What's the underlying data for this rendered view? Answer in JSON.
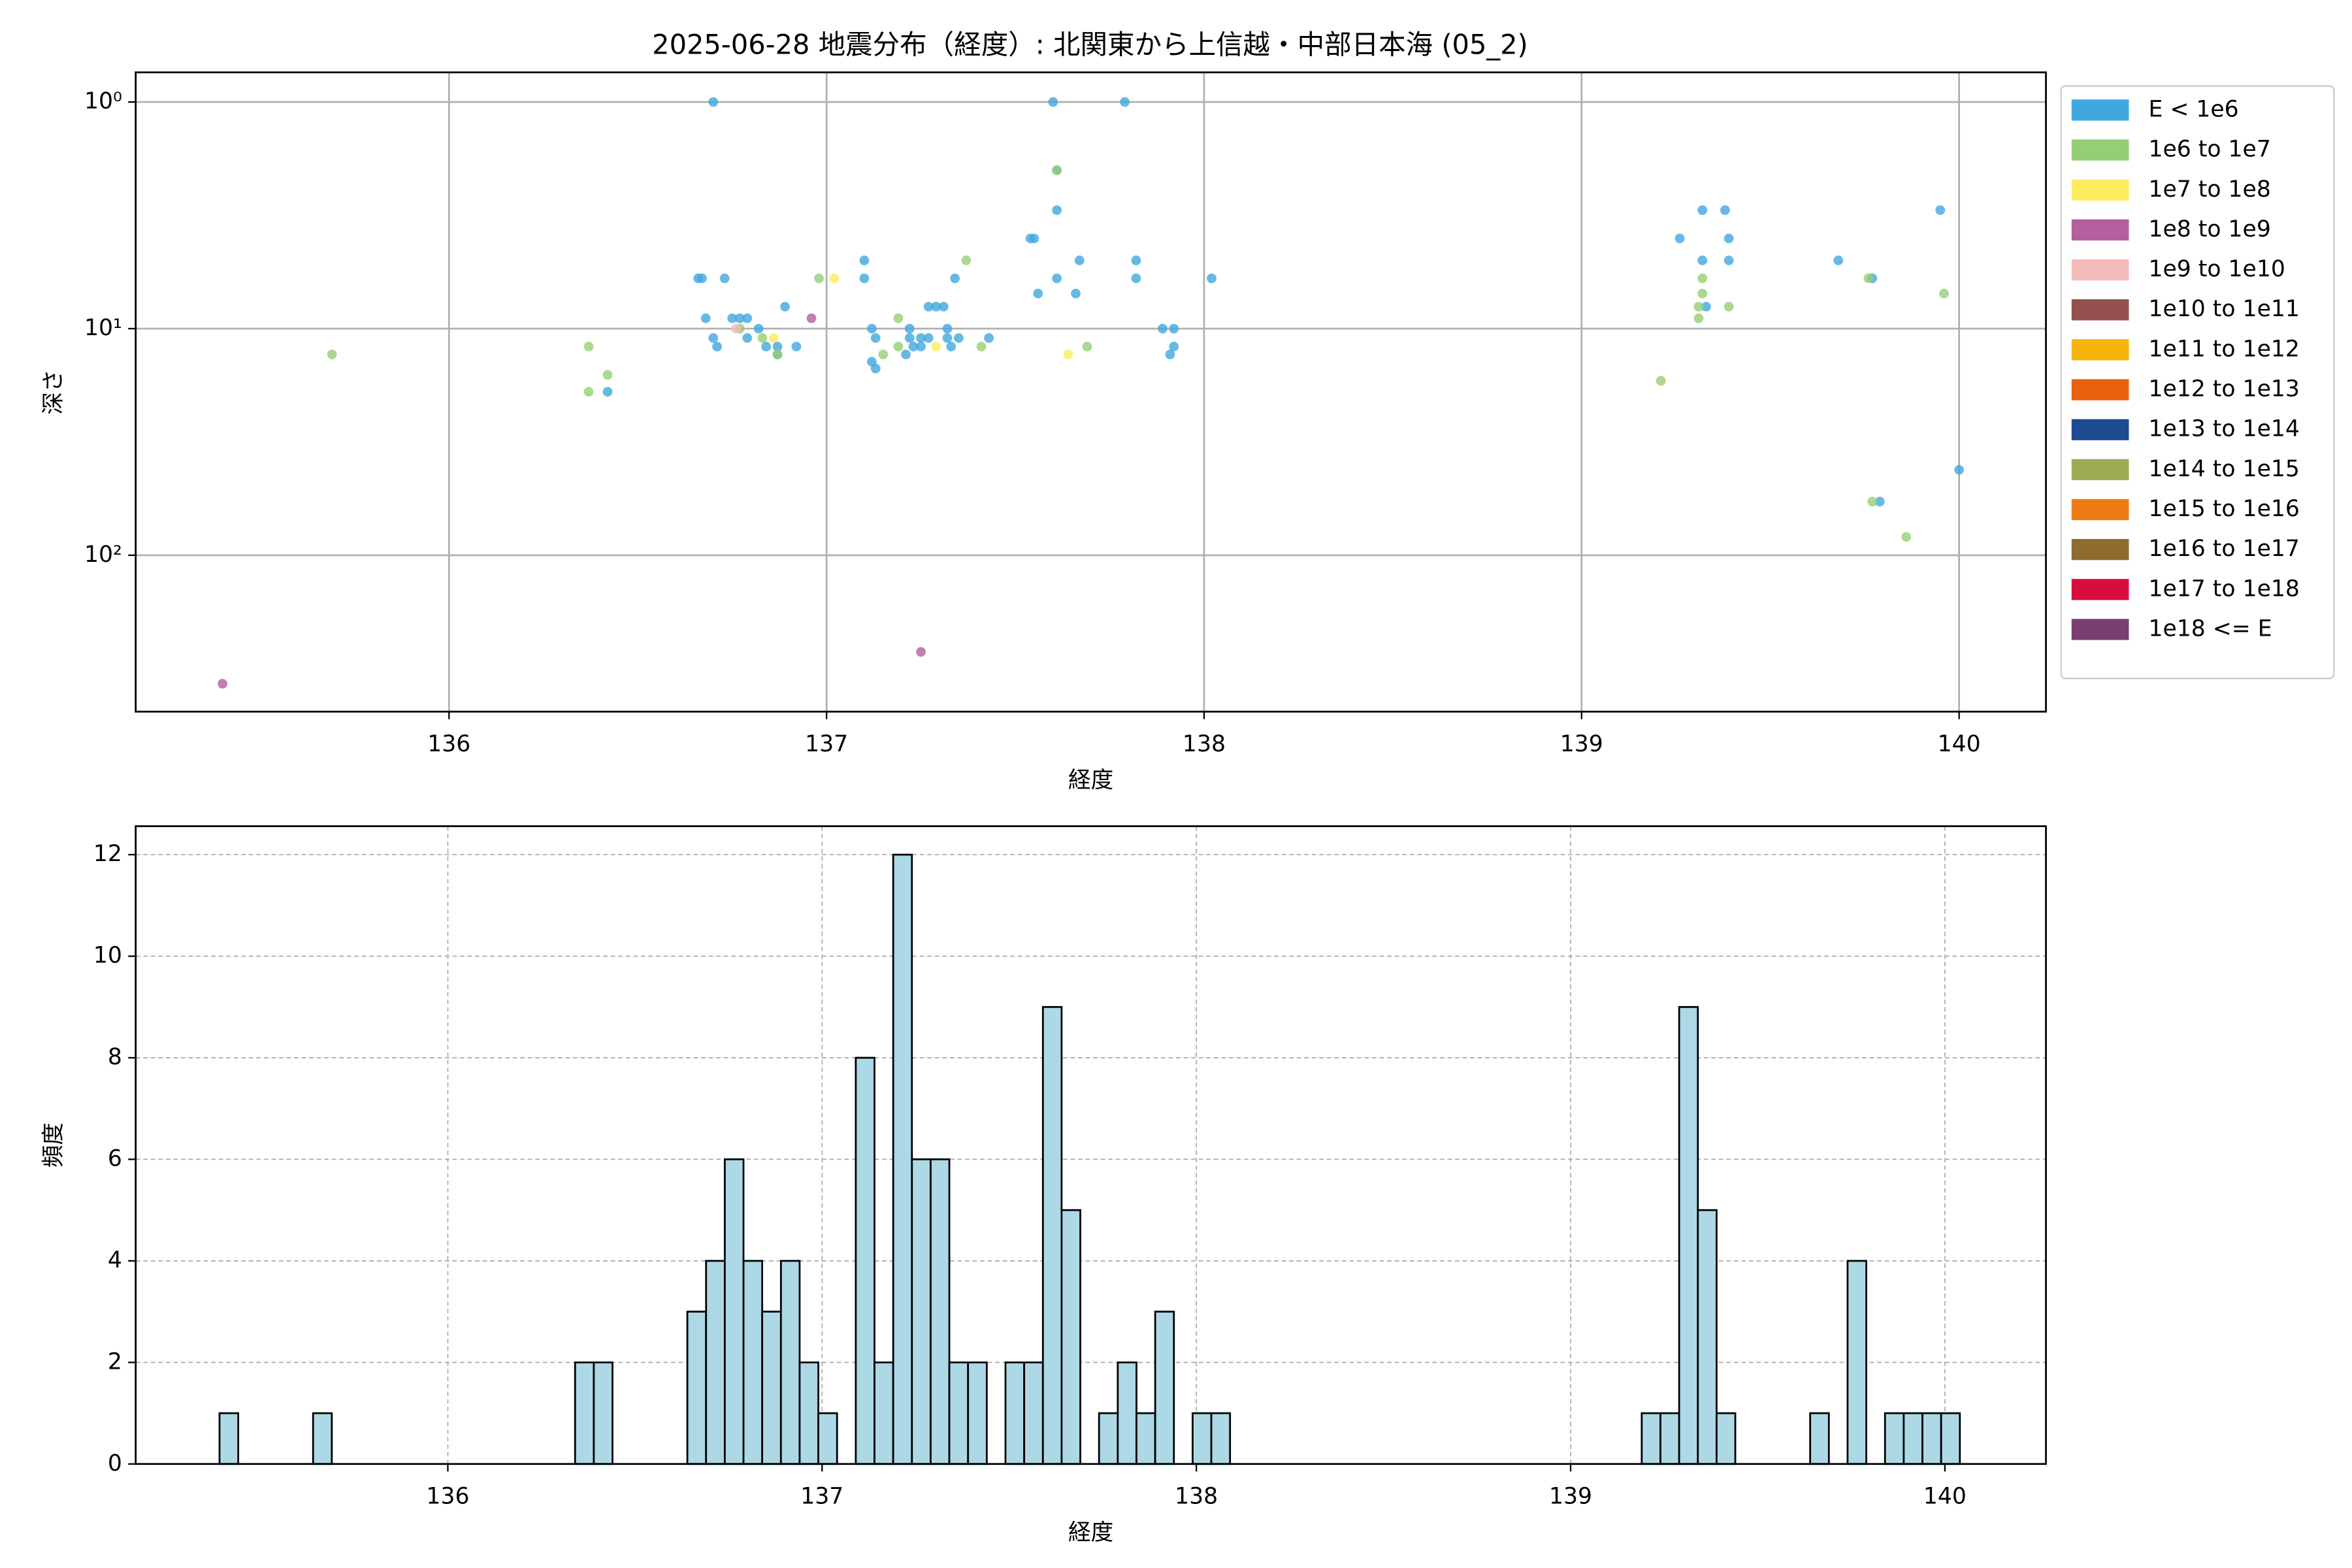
{
  "chart_data": [
    {
      "type": "scatter",
      "title": "2025-06-28 地震分布（経度）: 北関東から上信越・中部日本海 (05_2)",
      "xlabel": "経度",
      "ylabel": "深さ",
      "xlim": [
        135.17,
        140.23
      ],
      "xticks": [
        136,
        137,
        138,
        139,
        140
      ],
      "ylim": [
        490,
        0.74
      ],
      "yscale": "log",
      "yticks": [
        {
          "value": 1,
          "label": "10⁰"
        },
        {
          "value": 10,
          "label": "10¹"
        },
        {
          "value": 100,
          "label": "10²"
        }
      ],
      "grid": true,
      "legend": "outside right",
      "series": [
        {
          "name": "E < 1e6",
          "color": "#41a7df",
          "x": [
            136.7,
            137.6,
            137.79,
            137.61,
            137.61,
            137.54,
            137.55,
            137.67,
            137.82,
            136.66,
            136.67,
            136.73,
            137.1,
            137.1,
            137.61,
            137.82,
            137.34,
            137.56,
            137.66,
            138.02,
            136.89,
            137.27,
            137.29,
            137.31,
            136.68,
            136.75,
            136.77,
            136.79,
            136.82,
            137.12,
            137.22,
            137.32,
            137.89,
            137.92,
            136.7,
            137.13,
            136.79,
            137.22,
            137.25,
            137.27,
            137.32,
            137.35,
            137.43,
            136.71,
            136.84,
            136.87,
            136.92,
            137.23,
            137.25,
            137.33,
            137.92,
            136.87,
            137.21,
            137.91,
            137.12,
            137.13,
            136.42,
            139.32,
            139.38,
            139.26,
            139.39,
            139.32,
            139.39,
            139.68,
            139.77,
            139.33,
            139.95,
            139.79,
            140.0
          ],
          "y": [
            1,
            1,
            1,
            2,
            3,
            4,
            4,
            5,
            5,
            6,
            6,
            6,
            5,
            6,
            6,
            6,
            6,
            7,
            7,
            6,
            8,
            8,
            8,
            8,
            9,
            9,
            9,
            9,
            10,
            10,
            10,
            10,
            10,
            10,
            11,
            11,
            11,
            11,
            11,
            11,
            11,
            11,
            11,
            12,
            12,
            12,
            12,
            12,
            12,
            12,
            12,
            13,
            13,
            13,
            14,
            15,
            19,
            3,
            3,
            4,
            4,
            5,
            5,
            5,
            6,
            8,
            3,
            58,
            42
          ]
        },
        {
          "name": "1e6 to 1e7",
          "color": "#95cf73",
          "x": [
            135.69,
            136.37,
            136.37,
            136.42,
            137.61,
            137.37,
            136.98,
            139.76,
            139.32,
            139.32,
            139.31,
            139.31,
            139.39,
            139.96,
            139.21,
            139.77,
            139.86,
            137.19,
            136.77,
            136.83,
            136.87,
            137.19,
            137.15,
            137.41,
            137.69
          ],
          "y": [
            13,
            12,
            19,
            16,
            2,
            5,
            6,
            6,
            6,
            7,
            8,
            9,
            8,
            7,
            17,
            58,
            83,
            9,
            10,
            11,
            13,
            12,
            13,
            12,
            12
          ]
        },
        {
          "name": "1e7 to 1e8",
          "color": "#fdec5e",
          "x": [
            137.02,
            137.64,
            137.29,
            136.86
          ],
          "y": [
            6,
            13,
            12,
            11
          ]
        },
        {
          "name": "1e8 to 1e9",
          "color": "#b45f9e",
          "x": [
            136.96,
            135.4,
            137.25
          ],
          "y": [
            9,
            369,
            267
          ]
        },
        {
          "name": "1e9 to 1e10",
          "color": "#f4bcb8",
          "x": [
            136.76
          ],
          "y": [
            10
          ]
        },
        {
          "name": "1e10 to 1e11",
          "color": "#93504c",
          "x": [],
          "y": []
        },
        {
          "name": "1e11 to 1e12",
          "color": "#f5b40c",
          "x": [],
          "y": []
        },
        {
          "name": "1e12 to 1e13",
          "color": "#e8620f",
          "x": [],
          "y": []
        },
        {
          "name": "1e13 to 1e14",
          "color": "#1d4a91",
          "x": [],
          "y": []
        },
        {
          "name": "1e14 to 1e15",
          "color": "#9cac52",
          "x": [],
          "y": []
        },
        {
          "name": "1e15 to 1e16",
          "color": "#ee7a12",
          "x": [],
          "y": []
        },
        {
          "name": "1e16 to 1e17",
          "color": "#8d6c2e",
          "x": [],
          "y": []
        },
        {
          "name": "1e17 to 1e18",
          "color": "#d80d3d",
          "x": [],
          "y": []
        },
        {
          "name": "1e18 <= E",
          "color": "#7a3e70",
          "x": [],
          "y": []
        }
      ]
    },
    {
      "type": "histogram",
      "xlabel": "経度",
      "ylabel": "頻度",
      "xlim": [
        135.166,
        140.27
      ],
      "xticks": [
        136,
        137,
        138,
        139,
        140
      ],
      "ylim": [
        0,
        12.56
      ],
      "yticks": [
        0,
        2,
        4,
        6,
        8,
        10,
        12
      ],
      "grid": "dashed",
      "color": "#add8e6",
      "edgecolor": "#000000",
      "bins": [
        135.39,
        135.44,
        135.49,
        135.54,
        135.59,
        135.64,
        135.69,
        135.74,
        135.79,
        135.84,
        135.89,
        135.94,
        135.99,
        136.04,
        136.09,
        136.14,
        136.19,
        136.24,
        136.29,
        136.34,
        136.39,
        136.44,
        136.49,
        136.54,
        136.59,
        136.64,
        136.69,
        136.74,
        136.79,
        136.84,
        136.89,
        136.94,
        136.99,
        137.04,
        137.09,
        137.14,
        137.19,
        137.24,
        137.29,
        137.34,
        137.39,
        137.44,
        137.49,
        137.54,
        137.59,
        137.64,
        137.69,
        137.74,
        137.79,
        137.84,
        137.89,
        137.94,
        137.99,
        138.04,
        138.09,
        138.14,
        138.19,
        138.24,
        138.29,
        138.34,
        138.39,
        138.44,
        138.49,
        138.54,
        138.59,
        138.64,
        138.69,
        138.74,
        138.79,
        138.84,
        138.89,
        138.94,
        138.99,
        139.04,
        139.09,
        139.14,
        139.19,
        139.24,
        139.29,
        139.34,
        139.39,
        139.44,
        139.49,
        139.54,
        139.59,
        139.64,
        139.69,
        139.74,
        139.79,
        139.84,
        139.89,
        139.94,
        139.99,
        140.04
      ],
      "counts": [
        1,
        0,
        0,
        0,
        0,
        1,
        0,
        0,
        0,
        0,
        0,
        0,
        0,
        0,
        0,
        0,
        0,
        0,
        0,
        2,
        2,
        0,
        0,
        0,
        0,
        3,
        4,
        6,
        4,
        3,
        4,
        2,
        1,
        0,
        8,
        2,
        12,
        6,
        6,
        2,
        2,
        0,
        2,
        2,
        9,
        5,
        0,
        1,
        2,
        1,
        3,
        0,
        1,
        1,
        0,
        0,
        0,
        0,
        0,
        0,
        0,
        0,
        0,
        0,
        0,
        0,
        0,
        0,
        0,
        0,
        0,
        0,
        0,
        0,
        0,
        0,
        1,
        1,
        9,
        5,
        1,
        0,
        0,
        0,
        0,
        1,
        0,
        4,
        0,
        1,
        1,
        1,
        1
      ]
    }
  ]
}
